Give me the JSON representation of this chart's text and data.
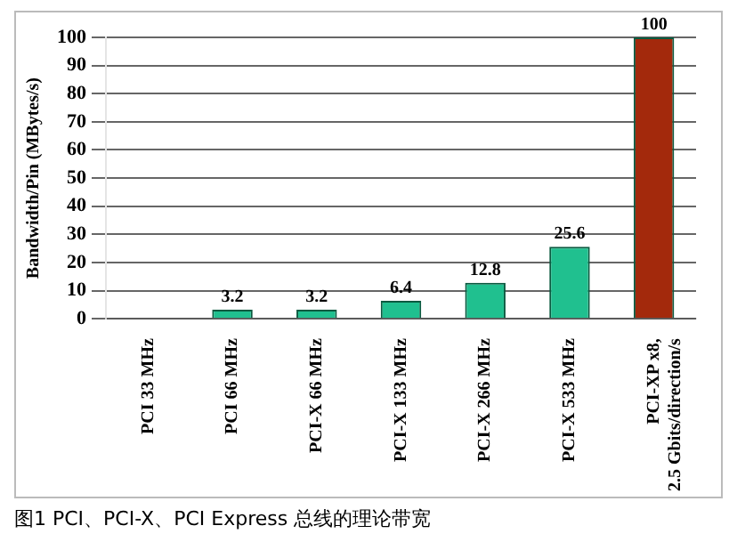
{
  "chart_data": {
    "type": "bar",
    "ylabel": "Bandwidth/Pin (MBytes/s)",
    "categories": [
      "PCI 33 MHz",
      "PCI 66 MHz",
      "PCI-X 66 MHz",
      "PCI-X 133 MHz",
      "PCI-X 266 MHz",
      "PCI-X 533 MHz",
      "PCI-XP x8, 2.5 Gbits/direction/s"
    ],
    "values": [
      null,
      3.2,
      3.2,
      6.4,
      12.8,
      25.6,
      100
    ],
    "colors": [
      "#20c08f",
      "#20c08f",
      "#20c08f",
      "#20c08f",
      "#20c08f",
      "#20c08f",
      "#a3290c"
    ],
    "ylim": [
      0,
      100
    ],
    "yticks": [
      0,
      10,
      20,
      30,
      40,
      50,
      60,
      70,
      80,
      90,
      100
    ],
    "grid": "y",
    "data_labels": true,
    "annotations": [
      "图1 PCI、PCI-X、PCI Express 总线的理论带宽"
    ]
  }
}
